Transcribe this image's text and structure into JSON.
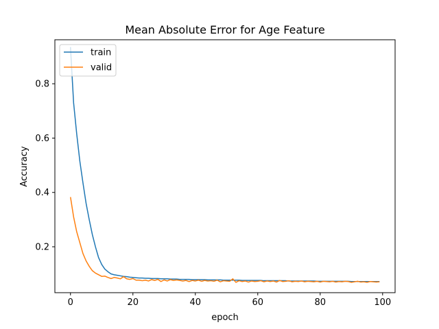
{
  "chart_data": {
    "type": "line",
    "title": "Mean Absolute Error for Age Feature",
    "xlabel": "epoch",
    "ylabel": "Accuracy",
    "xlim": [
      -5,
      104
    ],
    "ylim": [
      0.031,
      0.962
    ],
    "xticks": [
      0,
      20,
      40,
      60,
      80,
      100
    ],
    "xtick_labels": [
      "0",
      "20",
      "40",
      "60",
      "80",
      "100"
    ],
    "yticks": [
      0.2,
      0.4,
      0.6,
      0.8
    ],
    "ytick_labels": [
      "0.2",
      "0.4",
      "0.6",
      "0.8"
    ],
    "grid": false,
    "legend_position": "top-left",
    "series": [
      {
        "name": "train",
        "color": "#1f77b4",
        "x": [
          0,
          1,
          2,
          3,
          4,
          5,
          6,
          7,
          8,
          9,
          10,
          11,
          12,
          13,
          14,
          15,
          16,
          17,
          18,
          19,
          20,
          21,
          22,
          23,
          24,
          25,
          26,
          27,
          28,
          29,
          30,
          31,
          32,
          33,
          34,
          35,
          36,
          37,
          38,
          39,
          40,
          41,
          42,
          43,
          44,
          45,
          46,
          47,
          48,
          49,
          50,
          51,
          52,
          53,
          54,
          55,
          56,
          57,
          58,
          59,
          60,
          61,
          62,
          63,
          64,
          65,
          66,
          67,
          68,
          69,
          70,
          71,
          72,
          73,
          74,
          75,
          76,
          77,
          78,
          79,
          80,
          81,
          82,
          83,
          84,
          85,
          86,
          87,
          88,
          89,
          90,
          91,
          92,
          93,
          94,
          95,
          96,
          97,
          98,
          99
        ],
        "y": [
          0.935,
          0.73,
          0.615,
          0.515,
          0.435,
          0.36,
          0.3,
          0.245,
          0.2,
          0.16,
          0.135,
          0.118,
          0.108,
          0.1,
          0.097,
          0.095,
          0.093,
          0.091,
          0.09,
          0.088,
          0.087,
          0.086,
          0.085,
          0.085,
          0.084,
          0.084,
          0.083,
          0.083,
          0.083,
          0.082,
          0.082,
          0.082,
          0.081,
          0.081,
          0.081,
          0.08,
          0.08,
          0.08,
          0.08,
          0.079,
          0.079,
          0.079,
          0.079,
          0.079,
          0.078,
          0.078,
          0.078,
          0.078,
          0.078,
          0.077,
          0.077,
          0.077,
          0.077,
          0.077,
          0.077,
          0.076,
          0.076,
          0.076,
          0.076,
          0.076,
          0.076,
          0.076,
          0.075,
          0.075,
          0.075,
          0.075,
          0.075,
          0.075,
          0.075,
          0.075,
          0.074,
          0.074,
          0.074,
          0.074,
          0.074,
          0.074,
          0.074,
          0.074,
          0.074,
          0.073,
          0.073,
          0.073,
          0.073,
          0.073,
          0.073,
          0.073,
          0.073,
          0.073,
          0.073,
          0.073,
          0.072,
          0.072,
          0.072,
          0.072,
          0.072,
          0.072,
          0.072,
          0.072,
          0.072,
          0.072
        ]
      },
      {
        "name": "valid",
        "color": "#ff7f0e",
        "x": [
          0,
          1,
          2,
          3,
          4,
          5,
          6,
          7,
          8,
          9,
          10,
          11,
          12,
          13,
          14,
          15,
          16,
          17,
          18,
          19,
          20,
          21,
          22,
          23,
          24,
          25,
          26,
          27,
          28,
          29,
          30,
          31,
          32,
          33,
          34,
          35,
          36,
          37,
          38,
          39,
          40,
          41,
          42,
          43,
          44,
          45,
          46,
          47,
          48,
          49,
          50,
          51,
          52,
          53,
          54,
          55,
          56,
          57,
          58,
          59,
          60,
          61,
          62,
          63,
          64,
          65,
          66,
          67,
          68,
          69,
          70,
          71,
          72,
          73,
          74,
          75,
          76,
          77,
          78,
          79,
          80,
          81,
          82,
          83,
          84,
          85,
          86,
          87,
          88,
          89,
          90,
          91,
          92,
          93,
          94,
          95,
          96,
          97,
          98,
          99
        ],
        "y": [
          0.383,
          0.31,
          0.255,
          0.215,
          0.175,
          0.148,
          0.128,
          0.112,
          0.103,
          0.097,
          0.091,
          0.092,
          0.087,
          0.083,
          0.087,
          0.085,
          0.082,
          0.09,
          0.082,
          0.08,
          0.083,
          0.077,
          0.077,
          0.075,
          0.077,
          0.074,
          0.079,
          0.076,
          0.08,
          0.072,
          0.078,
          0.074,
          0.079,
          0.076,
          0.078,
          0.076,
          0.074,
          0.076,
          0.072,
          0.076,
          0.074,
          0.077,
          0.073,
          0.076,
          0.074,
          0.075,
          0.073,
          0.077,
          0.071,
          0.075,
          0.074,
          0.073,
          0.082,
          0.069,
          0.075,
          0.072,
          0.074,
          0.07,
          0.074,
          0.072,
          0.073,
          0.075,
          0.071,
          0.074,
          0.072,
          0.074,
          0.07,
          0.076,
          0.072,
          0.073,
          0.075,
          0.071,
          0.073,
          0.072,
          0.074,
          0.071,
          0.073,
          0.072,
          0.071,
          0.073,
          0.07,
          0.073,
          0.072,
          0.071,
          0.073,
          0.07,
          0.072,
          0.071,
          0.073,
          0.072,
          0.069,
          0.071,
          0.073,
          0.07,
          0.071,
          0.069,
          0.072,
          0.071,
          0.07,
          0.071
        ]
      }
    ]
  }
}
